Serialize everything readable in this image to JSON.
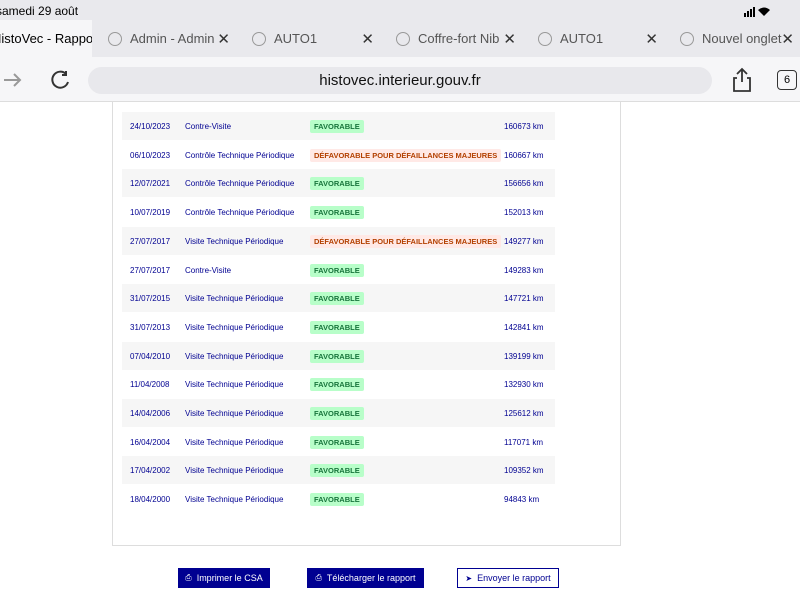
{
  "status_bar": {
    "date": "samedi 29 août"
  },
  "tabs": [
    {
      "title": "HistoVec - Rapport"
    },
    {
      "title": "Admin - Admin"
    },
    {
      "title": "AUTO1"
    },
    {
      "title": "Coffre-fort Nib"
    },
    {
      "title": "AUTO1"
    },
    {
      "title": "Nouvel onglet"
    }
  ],
  "toolbar": {
    "url": "histovec.interieur.gouv.fr",
    "tab_count": "6"
  },
  "table": {
    "rows": [
      [
        "24/10/2023",
        "Contre-Visite",
        "FAVORABLE",
        "160673 km"
      ],
      [
        "06/10/2023",
        "Contrôle Technique Périodique",
        "DÉFAVORABLE POUR DÉFAILLANCES MAJEURES",
        "160667 km"
      ],
      [
        "12/07/2021",
        "Contrôle Technique Périodique",
        "FAVORABLE",
        "156656 km"
      ],
      [
        "10/07/2019",
        "Contrôle Technique Périodique",
        "FAVORABLE",
        "152013 km"
      ],
      [
        "27/07/2017",
        "Visite Technique Périodique",
        "DÉFAVORABLE POUR DÉFAILLANCES MAJEURES",
        "149277 km"
      ],
      [
        "27/07/2017",
        "Contre-Visite",
        "FAVORABLE",
        "149283 km"
      ],
      [
        "31/07/2015",
        "Visite Technique Périodique",
        "FAVORABLE",
        "147721 km"
      ],
      [
        "31/07/2013",
        "Visite Technique Périodique",
        "FAVORABLE",
        "142841 km"
      ],
      [
        "07/04/2010",
        "Visite Technique Périodique",
        "FAVORABLE",
        "139199 km"
      ],
      [
        "11/04/2008",
        "Visite Technique Périodique",
        "FAVORABLE",
        "132930 km"
      ],
      [
        "14/04/2006",
        "Visite Technique Périodique",
        "FAVORABLE",
        "125612 km"
      ],
      [
        "16/04/2004",
        "Visite Technique Périodique",
        "FAVORABLE",
        "117071 km"
      ],
      [
        "17/04/2002",
        "Visite Technique Périodique",
        "FAVORABLE",
        "109352 km"
      ],
      [
        "18/04/2000",
        "Visite Technique Périodique",
        "FAVORABLE",
        "94843 km"
      ]
    ]
  },
  "buttons": [
    {
      "label": "Imprimer le CSA"
    },
    {
      "label": "Télécharger le rapport"
    },
    {
      "label": "Envoyer le rapport"
    }
  ]
}
